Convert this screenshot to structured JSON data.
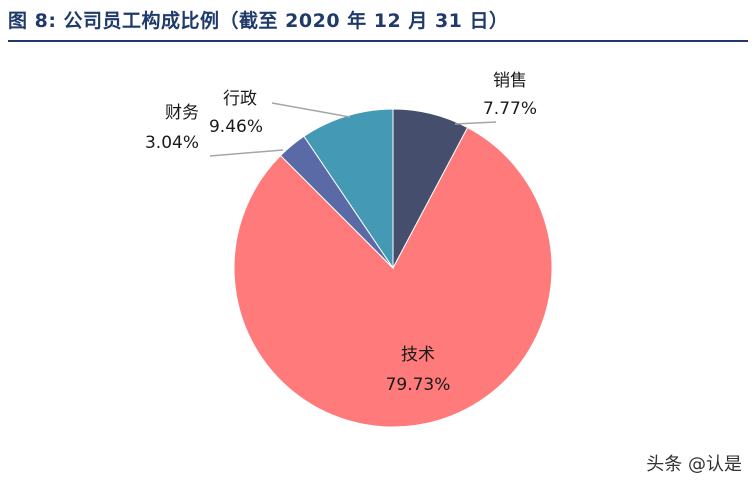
{
  "title": "图 8:  公司员工构成比例（截至 2020 年 12 月 31 日）",
  "watermark": "头条 @认是",
  "chart_data": {
    "type": "pie",
    "title": "图 8:  公司员工构成比例（截至 2020 年 12 月 31 日）",
    "start": "12 o'clock",
    "direction": "clockwise",
    "slices": [
      {
        "name": "销售",
        "value": 7.77,
        "label": "7.77%",
        "color": "#464e6e"
      },
      {
        "name": "技术",
        "value": 79.73,
        "label": "79.73%",
        "color": "#ff7a7a"
      },
      {
        "name": "财务",
        "value": 3.04,
        "label": "3.04%",
        "color": "#5a6aa6"
      },
      {
        "name": "行政",
        "value": 9.46,
        "label": "9.46%",
        "color": "#4499b5"
      }
    ]
  }
}
